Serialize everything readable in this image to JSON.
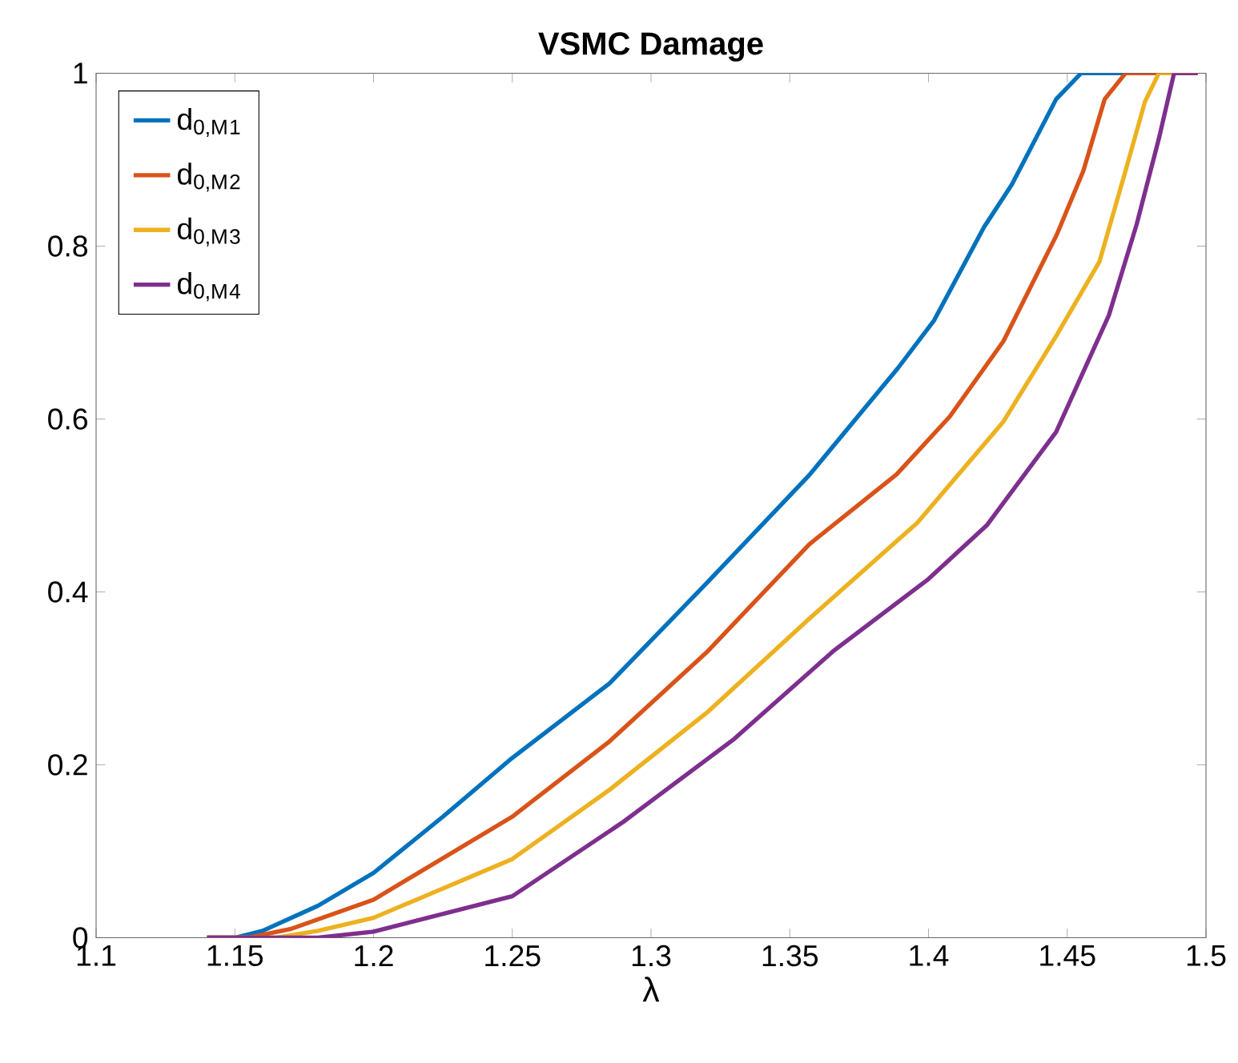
{
  "chart_data": {
    "type": "line",
    "title": "VSMC Damage",
    "xlabel": "λ",
    "xlim": [
      1.1,
      1.5
    ],
    "ylim": [
      0,
      1
    ],
    "xticks": [
      1.1,
      1.15,
      1.2,
      1.25,
      1.3,
      1.35,
      1.4,
      1.45,
      1.5
    ],
    "yticks": [
      0,
      0.2,
      0.4,
      0.6,
      0.8,
      1
    ],
    "grid": false,
    "legend": "top left",
    "marker": "none",
    "line_style": "solid",
    "series": [
      {
        "name": "d$_{0,M}$$_{1}$",
        "color": "#0072bd",
        "x": [
          1.14,
          1.15,
          1.16,
          1.18,
          1.2,
          1.225,
          1.25,
          1.285,
          1.32,
          1.357,
          1.389,
          1.402,
          1.42,
          1.43,
          1.446,
          1.455,
          1.497
        ],
        "values": [
          0,
          0,
          0.008,
          0.037,
          0.075,
          0.14,
          0.208,
          0.294,
          0.41,
          0.535,
          0.659,
          0.714,
          0.822,
          0.871,
          0.97,
          1,
          1
        ]
      },
      {
        "name": "d$_{0,M}$$_{2}$",
        "color": "#d95319",
        "x": [
          1.14,
          1.155,
          1.17,
          1.2,
          1.25,
          1.285,
          1.32,
          1.357,
          1.3885,
          1.4077,
          1.427,
          1.4462,
          1.4558,
          1.4635,
          1.471,
          1.497
        ],
        "values": [
          0,
          0,
          0.01,
          0.044,
          0.14,
          0.227,
          0.33,
          0.455,
          0.536,
          0.603,
          0.69,
          0.813,
          0.887,
          0.97,
          1,
          1
        ]
      },
      {
        "name": "d$_{0,M}$$_{3}$",
        "color": "#edb120",
        "x": [
          1.14,
          1.165,
          1.18,
          1.2,
          1.25,
          1.285,
          1.32,
          1.357,
          1.396,
          1.427,
          1.446,
          1.4616,
          1.471,
          1.478,
          1.483,
          1.497
        ],
        "values": [
          0,
          0,
          0.008,
          0.023,
          0.091,
          0.171,
          0.26,
          0.369,
          0.48,
          0.597,
          0.696,
          0.782,
          0.887,
          0.967,
          1,
          1
        ]
      },
      {
        "name": "d$_{0,M}$$_{4}$",
        "color": "#7e2f8e",
        "x": [
          1.14,
          1.18,
          1.2,
          1.25,
          1.29,
          1.33,
          1.3655,
          1.4,
          1.421,
          1.446,
          1.465,
          1.475,
          1.483,
          1.4885,
          1.497
        ],
        "values": [
          0,
          0,
          0.007,
          0.048,
          0.134,
          0.23,
          0.331,
          0.415,
          0.477,
          0.585,
          0.72,
          0.825,
          0.924,
          1,
          1
        ]
      }
    ]
  }
}
